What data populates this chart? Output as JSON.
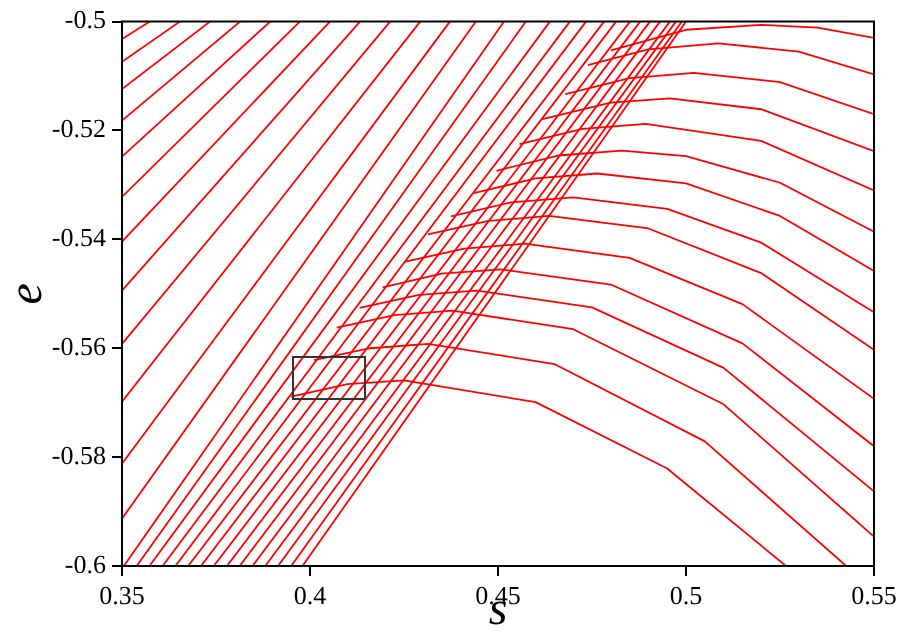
{
  "chart_data": {
    "type": "line",
    "xlabel": "s",
    "ylabel": "e",
    "xlim": [
      0.35,
      0.55
    ],
    "ylim": [
      -0.6,
      -0.5
    ],
    "xticks": [
      0.35,
      0.4,
      0.45,
      0.5,
      0.55
    ],
    "yticks": [
      -0.6,
      -0.58,
      -0.56,
      -0.54,
      -0.52,
      -0.5
    ],
    "grid": false,
    "legend": false,
    "marker": "none",
    "line_style": "solid",
    "series": [
      {
        "color": "#ff0000",
        "x": [
          0.35,
          0.3574
        ],
        "values": [
          -0.5032,
          -0.5
        ]
      },
      {
        "color": "#ff0000",
        "x": [
          0.35,
          0.3654
        ],
        "values": [
          -0.5074,
          -0.5
        ]
      },
      {
        "color": "#ff0000",
        "x": [
          0.35,
          0.3734
        ],
        "values": [
          -0.5124,
          -0.5
        ]
      },
      {
        "color": "#ff0000",
        "x": [
          0.35,
          0.3814
        ],
        "values": [
          -0.5182,
          -0.5
        ]
      },
      {
        "color": "#ff0000",
        "x": [
          0.35,
          0.3894
        ],
        "values": [
          -0.5248,
          -0.5
        ]
      },
      {
        "color": "#ff0000",
        "x": [
          0.35,
          0.3973
        ],
        "values": [
          -0.5322,
          -0.5
        ]
      },
      {
        "color": "#ff0000",
        "x": [
          0.35,
          0.4053
        ],
        "values": [
          -0.5404,
          -0.5
        ]
      },
      {
        "color": "#ff0000",
        "x": [
          0.35,
          0.4133
        ],
        "values": [
          -0.5494,
          -0.5
        ]
      },
      {
        "color": "#ff0000",
        "x": [
          0.35,
          0.4213
        ],
        "values": [
          -0.5592,
          -0.5
        ]
      },
      {
        "color": "#ff0000",
        "x": [
          0.35,
          0.4293
        ],
        "values": [
          -0.5698,
          -0.5
        ]
      },
      {
        "color": "#ff0000",
        "x": [
          0.35,
          0.4372
        ],
        "values": [
          -0.5812,
          -0.5
        ]
      },
      {
        "color": "#ff0000",
        "x": [
          0.35,
          0.4441
        ],
        "values": [
          -0.5913,
          -0.5
        ]
      },
      {
        "color": "#ff0000",
        "x": [
          0.3505,
          0.4516
        ],
        "values": [
          -0.6,
          -0.5
        ]
      },
      {
        "color": "#ff0000",
        "x": [
          0.3539,
          0.4574
        ],
        "values": [
          -0.6,
          -0.5
        ]
      },
      {
        "color": "#ff0000",
        "x": [
          0.3573,
          0.4638
        ],
        "values": [
          -0.6,
          -0.5
        ]
      },
      {
        "color": "#ff0000",
        "x": [
          0.3608,
          0.4691
        ],
        "values": [
          -0.6,
          -0.5
        ]
      },
      {
        "color": "#ff0000",
        "x": [
          0.3642,
          0.4734
        ],
        "values": [
          -0.6,
          -0.5
        ]
      },
      {
        "color": "#ff0000",
        "x": [
          0.3676,
          0.4782
        ],
        "values": [
          -0.6,
          -0.5
        ]
      },
      {
        "color": "#ff0000",
        "x": [
          0.371,
          0.4814
        ],
        "values": [
          -0.6,
          -0.5
        ]
      },
      {
        "color": "#ff0000",
        "x": [
          0.3744,
          0.4851
        ],
        "values": [
          -0.6,
          -0.5
        ]
      },
      {
        "color": "#ff0000",
        "x": [
          0.3779,
          0.4878
        ],
        "values": [
          -0.6,
          -0.5
        ]
      },
      {
        "color": "#ff0000",
        "x": [
          0.3813,
          0.4904
        ],
        "values": [
          -0.6,
          -0.5
        ]
      },
      {
        "color": "#ff0000",
        "x": [
          0.3847,
          0.4931
        ],
        "values": [
          -0.6,
          -0.5
        ]
      },
      {
        "color": "#ff0000",
        "x": [
          0.3881,
          0.4957
        ],
        "values": [
          -0.6,
          -0.5
        ]
      },
      {
        "color": "#ff0000",
        "x": [
          0.3915,
          0.4973
        ],
        "values": [
          -0.6,
          -0.5
        ]
      },
      {
        "color": "#ff0000",
        "x": [
          0.395,
          0.4989
        ],
        "values": [
          -0.6,
          -0.5
        ]
      },
      {
        "color": "#ff0000",
        "x": [
          0.398,
          0.5
        ],
        "values": [
          -0.6,
          -0.5
        ]
      },
      {
        "color": "#ff0000",
        "x": [
          0.48,
          0.5,
          0.52,
          0.535,
          0.55
        ],
        "values": [
          -0.5053,
          -0.5015,
          -0.5006,
          -0.5011,
          -0.503
        ]
      },
      {
        "color": "#ff0000",
        "x": [
          0.4739,
          0.49,
          0.5086,
          0.53,
          0.55
        ],
        "values": [
          -0.508,
          -0.5051,
          -0.504,
          -0.5055,
          -0.5097
        ]
      },
      {
        "color": "#ff0000",
        "x": [
          0.4679,
          0.485,
          0.5021,
          0.525,
          0.55
        ],
        "values": [
          -0.5133,
          -0.5104,
          -0.5094,
          -0.5111,
          -0.517
        ]
      },
      {
        "color": "#ff0000",
        "x": [
          0.4618,
          0.48,
          0.4957,
          0.52,
          0.55
        ],
        "values": [
          -0.5179,
          -0.5149,
          -0.5141,
          -0.5161,
          -0.5238
        ]
      },
      {
        "color": "#ff0000",
        "x": [
          0.4557,
          0.4725,
          0.4893,
          0.52,
          0.55
        ],
        "values": [
          -0.5225,
          -0.5197,
          -0.5188,
          -0.5219,
          -0.531
        ]
      },
      {
        "color": "#ff0000",
        "x": [
          0.4496,
          0.466,
          0.4829,
          0.5,
          0.525,
          0.55
        ],
        "values": [
          -0.5274,
          -0.5246,
          -0.5237,
          -0.5247,
          -0.5296,
          -0.5386
        ]
      },
      {
        "color": "#ff0000",
        "x": [
          0.4436,
          0.46,
          0.4764,
          0.5,
          0.525,
          0.55
        ],
        "values": [
          -0.5315,
          -0.5288,
          -0.5279,
          -0.5297,
          -0.5357,
          -0.5458
        ]
      },
      {
        "color": "#ff0000",
        "x": [
          0.4375,
          0.4535,
          0.47,
          0.495,
          0.52,
          0.55
        ],
        "values": [
          -0.5358,
          -0.5332,
          -0.5323,
          -0.5344,
          -0.5406,
          -0.5534
        ]
      },
      {
        "color": "#ff0000",
        "x": [
          0.4314,
          0.4475,
          0.4636,
          0.49,
          0.52,
          0.55
        ],
        "values": [
          -0.5391,
          -0.5366,
          -0.5357,
          -0.538,
          -0.5462,
          -0.5603
        ]
      },
      {
        "color": "#ff0000",
        "x": [
          0.4254,
          0.441,
          0.4571,
          0.485,
          0.515,
          0.55
        ],
        "values": [
          -0.5441,
          -0.5417,
          -0.5408,
          -0.5434,
          -0.5519,
          -0.5693
        ]
      },
      {
        "color": "#ff0000",
        "x": [
          0.4193,
          0.435,
          0.4507,
          0.48,
          0.515,
          0.55
        ],
        "values": [
          -0.5488,
          -0.5463,
          -0.5455,
          -0.5483,
          -0.5591,
          -0.578
        ]
      },
      {
        "color": "#ff0000",
        "x": [
          0.4132,
          0.429,
          0.4443,
          0.475,
          0.51,
          0.55
        ],
        "values": [
          -0.5526,
          -0.5502,
          -0.5494,
          -0.5525,
          -0.5636,
          -0.5863
        ]
      },
      {
        "color": "#ff0000",
        "x": [
          0.4071,
          0.4225,
          0.4379,
          0.47,
          0.51,
          0.55
        ],
        "values": [
          -0.5562,
          -0.5539,
          -0.5531,
          -0.5565,
          -0.5703,
          -0.5946
        ]
      },
      {
        "color": "#ff0000",
        "x": [
          0.4011,
          0.416,
          0.4314,
          0.465,
          0.505,
          0.5426
        ],
        "values": [
          -0.5622,
          -0.56,
          -0.5592,
          -0.5629,
          -0.5771,
          -0.6
        ]
      },
      {
        "color": "#ff0000",
        "x": [
          0.395,
          0.41,
          0.425,
          0.46,
          0.495,
          0.5266
        ],
        "values": [
          -0.5689,
          -0.5666,
          -0.5659,
          -0.5699,
          -0.5821,
          -0.6
        ]
      }
    ]
  }
}
